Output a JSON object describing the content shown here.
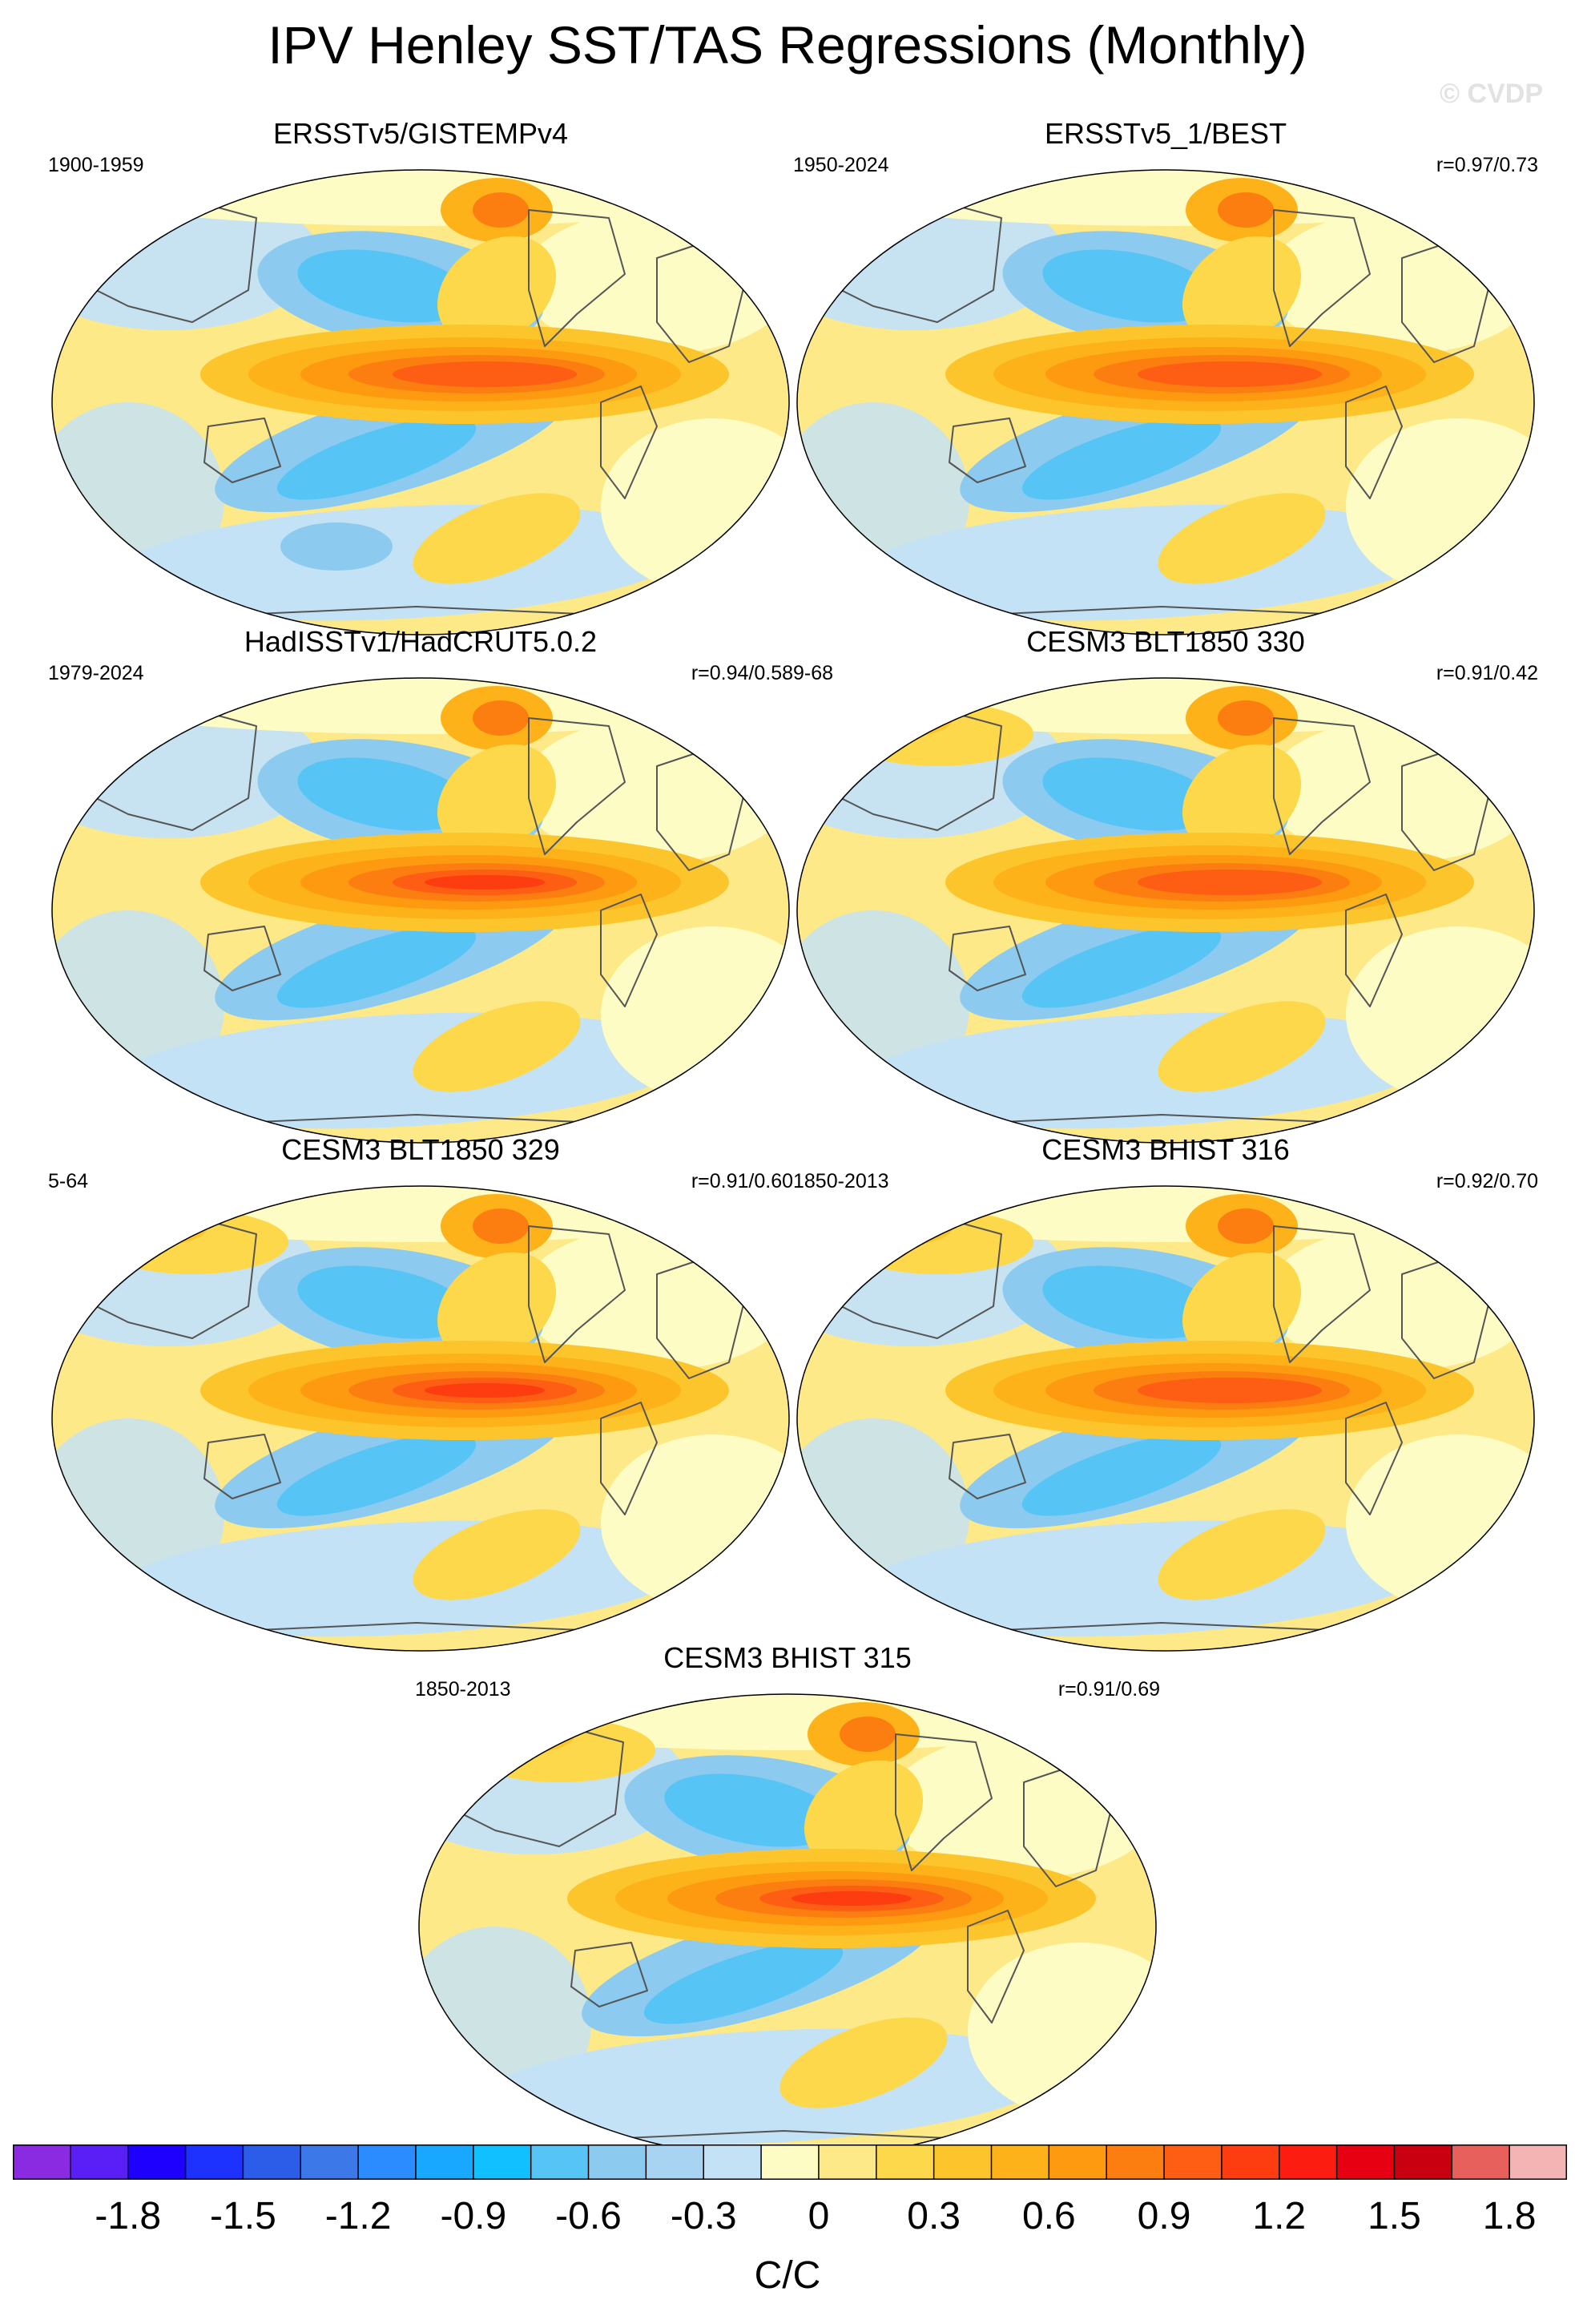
{
  "title": "IPV Henley SST/TAS Regressions (Monthly)",
  "watermark": "© CVDP",
  "panels": [
    {
      "title": "ERSSTv5/GISTEMPv4",
      "left_label": "1900-1959",
      "right_label": ""
    },
    {
      "title": "ERSSTv5_1/BEST",
      "left_label": "1950-2024",
      "right_label": "r=0.97/0.73"
    },
    {
      "title": "HadISSTv1/HadCRUT5.0.2",
      "left_label": "1979-2024",
      "right_label": "r=0.94/0.58"
    },
    {
      "title": "CESM3 BLT1850 330",
      "left_label": "9-68",
      "right_label": "r=0.91/0.42"
    },
    {
      "title": "CESM3 BLT1850 329",
      "left_label": "5-64",
      "right_label": "r=0.91/0.60"
    },
    {
      "title": "CESM3 BHIST 316",
      "left_label": "1850-2013",
      "right_label": "r=0.92/0.70"
    },
    {
      "title": "CESM3 BHIST 315",
      "left_label": "1850-2013",
      "right_label": "r=0.91/0.69"
    }
  ],
  "colorbar": {
    "units": "C/C",
    "colors": [
      "#8a2be2",
      "#5a1ff5",
      "#1e00ff",
      "#1e32ff",
      "#2b5de8",
      "#3c78e8",
      "#2a8cff",
      "#18a8ff",
      "#10c0ff",
      "#56c4f5",
      "#8ccaf0",
      "#a8d4f2",
      "#c4e2f5",
      "#fdfcc4",
      "#fde988",
      "#fdd84a",
      "#fdc52c",
      "#fdb21a",
      "#fd9a10",
      "#fd7e10",
      "#fd5e14",
      "#fd3c10",
      "#fd1c10",
      "#e60012",
      "#c80010",
      "#e8605c",
      "#f5b4b4"
    ],
    "tick_labels": [
      "-1.8",
      "-1.5",
      "-1.2",
      "-0.9",
      "-0.6",
      "-0.3",
      "0",
      "0.3",
      "0.6",
      "0.9",
      "1.2",
      "1.5",
      "1.8"
    ]
  }
}
